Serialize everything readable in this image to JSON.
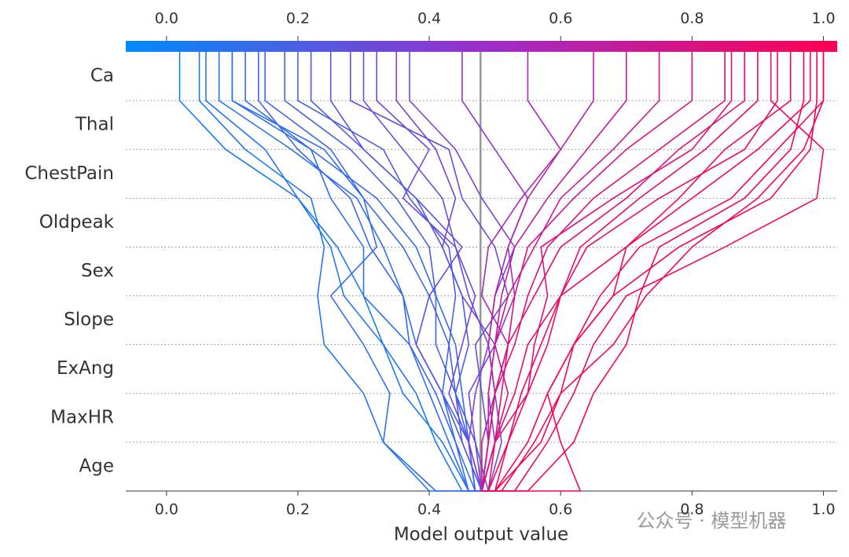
{
  "chart_data": {
    "type": "decision",
    "xlabel": "Model output value",
    "features": [
      "Ca",
      "Thal",
      "ChestPain",
      "Oldpeak",
      "Sex",
      "Slope",
      "ExAng",
      "MaxHR",
      "Age"
    ],
    "base_value": 0.478,
    "xlim": [
      -0.062,
      1.021
    ],
    "xticks": [
      {
        "value": 0,
        "label": "0.0"
      },
      {
        "value": 0.2,
        "label": "0.2"
      },
      {
        "value": 0.4,
        "label": "0.4"
      },
      {
        "value": 0.6,
        "label": "0.6"
      },
      {
        "value": 0.8,
        "label": "0.8"
      },
      {
        "value": 1,
        "label": "1.0"
      }
    ],
    "colormap": [
      "#008bfb",
      "#9b2ecb",
      "#ff0052"
    ],
    "watermark": "公众号 · 模型机器",
    "series": [
      {
        "values": [
          0.02,
          0.09,
          0.2,
          0.26,
          0.3,
          0.33,
          0.36,
          0.42,
          0.46
        ]
      },
      {
        "values": [
          0.06,
          0.15,
          0.2,
          0.25,
          0.27,
          0.33,
          0.38,
          0.41,
          0.45
        ]
      },
      {
        "values": [
          0.08,
          0.19,
          0.29,
          0.33,
          0.36,
          0.38,
          0.42,
          0.44,
          0.47
        ]
      },
      {
        "values": [
          0.1,
          0.22,
          0.25,
          0.3,
          0.3,
          0.37,
          0.4,
          0.43,
          0.46
        ]
      },
      {
        "values": [
          0.12,
          0.22,
          0.32,
          0.38,
          0.41,
          0.44,
          0.45,
          0.46,
          0.47
        ]
      },
      {
        "values": [
          0.15,
          0.25,
          0.3,
          0.36,
          0.4,
          0.43,
          0.42,
          0.46,
          0.47
        ]
      },
      {
        "values": [
          0.18,
          0.28,
          0.35,
          0.4,
          0.41,
          0.41,
          0.44,
          0.45,
          0.48
        ]
      },
      {
        "values": [
          0.05,
          0.12,
          0.22,
          0.24,
          0.23,
          0.24,
          0.3,
          0.33,
          0.4
        ]
      },
      {
        "values": [
          0.1,
          0.24,
          0.3,
          0.32,
          0.25,
          0.3,
          0.34,
          0.33,
          0.41
        ]
      },
      {
        "values": [
          0.2,
          0.33,
          0.37,
          0.43,
          0.44,
          0.43,
          0.44,
          0.46,
          0.47
        ]
      },
      {
        "values": [
          0.25,
          0.3,
          0.38,
          0.45,
          0.4,
          0.38,
          0.42,
          0.45,
          0.48
        ]
      },
      {
        "values": [
          0.3,
          0.36,
          0.42,
          0.44,
          0.47,
          0.45,
          0.43,
          0.46,
          0.48
        ]
      },
      {
        "values": [
          0.35,
          0.41,
          0.44,
          0.42,
          0.45,
          0.5,
          0.46,
          0.47,
          0.48
        ]
      },
      {
        "values": [
          0.22,
          0.3,
          0.38,
          0.42,
          0.45,
          0.46,
          0.44,
          0.47,
          0.49
        ]
      },
      {
        "values": [
          0.14,
          0.2,
          0.28,
          0.31,
          0.36,
          0.37,
          0.41,
          0.44,
          0.46
        ]
      },
      {
        "values": [
          0.28,
          0.43,
          0.45,
          0.5,
          0.52,
          0.47,
          0.48,
          0.49,
          0.48
        ]
      },
      {
        "values": [
          0.37,
          0.44,
          0.48,
          0.53,
          0.5,
          0.49,
          0.47,
          0.46,
          0.48
        ]
      },
      {
        "values": [
          0.32,
          0.4,
          0.36,
          0.44,
          0.46,
          0.49,
          0.5,
          0.51,
          0.49
        ]
      },
      {
        "values": [
          0.45,
          0.5,
          0.55,
          0.52,
          0.53,
          0.5,
          0.49,
          0.5,
          0.48
        ]
      },
      {
        "values": [
          0.55,
          0.6,
          0.54,
          0.49,
          0.48,
          0.52,
          0.5,
          0.49,
          0.48
        ]
      },
      {
        "values": [
          1.0,
          0.93,
          0.86,
          0.72,
          0.66,
          0.62,
          0.58,
          0.55,
          0.5
        ]
      },
      {
        "values": [
          0.98,
          0.9,
          0.8,
          0.7,
          0.6,
          0.58,
          0.55,
          0.52,
          0.49
        ]
      },
      {
        "values": [
          0.95,
          0.85,
          0.78,
          0.7,
          0.68,
          0.62,
          0.6,
          0.56,
          0.51
        ]
      },
      {
        "values": [
          0.92,
          1.0,
          0.99,
          0.85,
          0.7,
          0.65,
          0.62,
          0.58,
          0.53
        ]
      },
      {
        "values": [
          0.9,
          0.82,
          0.72,
          0.63,
          0.6,
          0.55,
          0.53,
          0.5,
          0.49
        ]
      },
      {
        "values": [
          0.88,
          0.78,
          0.7,
          0.6,
          0.56,
          0.52,
          0.51,
          0.5,
          0.48
        ]
      },
      {
        "values": [
          0.85,
          0.75,
          0.65,
          0.58,
          0.55,
          0.53,
          0.5,
          0.49,
          0.48
        ]
      },
      {
        "values": [
          0.8,
          0.7,
          0.62,
          0.55,
          0.53,
          0.52,
          0.5,
          0.49,
          0.48
        ]
      },
      {
        "values": [
          0.97,
          0.95,
          0.88,
          0.75,
          0.72,
          0.7,
          0.65,
          0.62,
          0.55
        ]
      },
      {
        "values": [
          0.75,
          0.68,
          0.6,
          0.56,
          0.52,
          0.5,
          0.52,
          0.5,
          0.48
        ]
      },
      {
        "values": [
          0.7,
          0.64,
          0.58,
          0.53,
          0.51,
          0.5,
          0.49,
          0.49,
          0.48
        ]
      },
      {
        "values": [
          1.0,
          0.97,
          0.9,
          0.8,
          0.73,
          0.68,
          0.6,
          0.57,
          0.5
        ]
      },
      {
        "values": [
          0.93,
          0.88,
          0.75,
          0.64,
          0.6,
          0.57,
          0.54,
          0.52,
          0.5
        ]
      },
      {
        "values": [
          0.99,
          0.98,
          0.92,
          0.78,
          0.68,
          0.62,
          0.58,
          0.6,
          0.63
        ]
      },
      {
        "values": [
          0.86,
          0.8,
          0.68,
          0.57,
          0.58,
          0.56,
          0.55,
          0.5,
          0.48
        ]
      },
      {
        "values": [
          0.65,
          0.6,
          0.55,
          0.52,
          0.5,
          0.49,
          0.5,
          0.48,
          0.48
        ]
      }
    ]
  }
}
